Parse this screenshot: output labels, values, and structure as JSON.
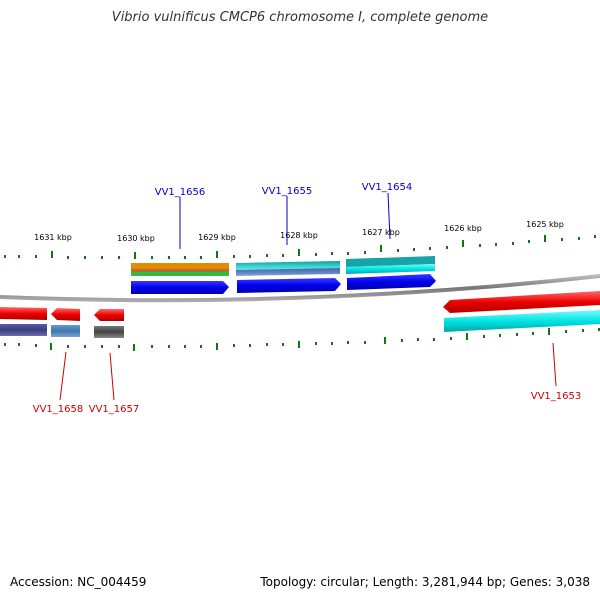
{
  "title": "Vibrio vulnificus CMCP6 chromosome I, complete genome",
  "accession": "Accession: NC_004459",
  "summary": "Topology: circular; Length: 3,281,944 bp; Genes: 3,038",
  "ruler": {
    "ticks": [
      {
        "label": "1631 kbp"
      },
      {
        "label": "1630 kbp"
      },
      {
        "label": "1629 kbp"
      },
      {
        "label": "1628 kbp"
      },
      {
        "label": "1627 kbp"
      },
      {
        "label": "1626 kbp"
      },
      {
        "label": "1625 kbp"
      }
    ]
  },
  "genes_top": [
    {
      "label": "VV1_1656",
      "color": "#0000cc"
    },
    {
      "label": "VV1_1655",
      "color": "#0000cc"
    },
    {
      "label": "VV1_1654",
      "color": "#0000cc"
    }
  ],
  "genes_bottom": [
    {
      "label": "VV1_1658",
      "color": "#cc0000"
    },
    {
      "label": "VV1_1657",
      "color": "#cc0000"
    },
    {
      "label": "VV1_1653",
      "color": "#cc0000"
    }
  ],
  "colors": {
    "forward_strand": "#0000ee",
    "reverse_strand": "#ee0000",
    "backbone": "#888888",
    "tick": "#117711",
    "cyan_feature": "#00dddd",
    "teal_feature": "#20a8a8",
    "orange_feature": "#ee8800",
    "green_feature": "#33bb33",
    "slate_feature": "#4a4a8a",
    "gray_feature": "#555555"
  }
}
